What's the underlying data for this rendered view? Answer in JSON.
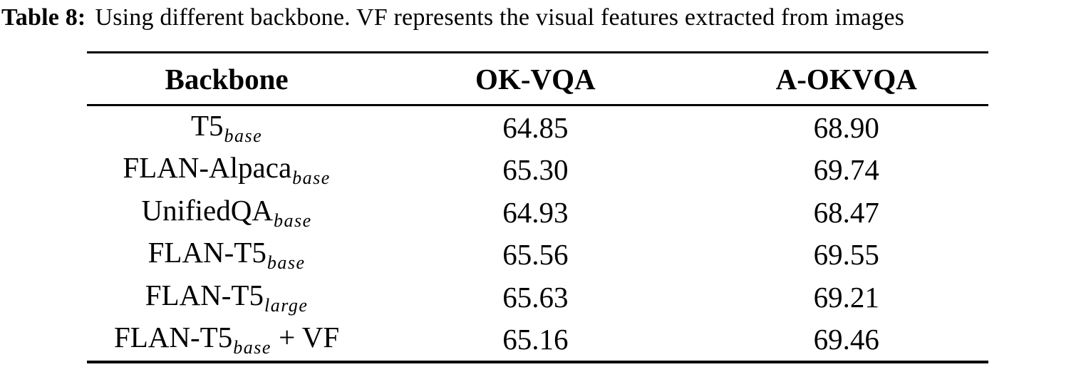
{
  "caption": {
    "label": "Table 8:",
    "text": "Using different backbone. VF represents the visual features extracted from images"
  },
  "table": {
    "headers": [
      "Backbone",
      "OK-VQA",
      "A-OKVQA"
    ],
    "rows": [
      {
        "backbone_main": "T5",
        "backbone_sub": "base",
        "backbone_suffix": "",
        "ok_vqa": "64.85",
        "a_okvqa": "68.90"
      },
      {
        "backbone_main": "FLAN-Alpaca",
        "backbone_sub": "base",
        "backbone_suffix": "",
        "ok_vqa": "65.30",
        "a_okvqa": "69.74"
      },
      {
        "backbone_main": "UnifiedQA",
        "backbone_sub": "base",
        "backbone_suffix": "",
        "ok_vqa": "64.93",
        "a_okvqa": "68.47"
      },
      {
        "backbone_main": "FLAN-T5",
        "backbone_sub": "base",
        "backbone_suffix": "",
        "ok_vqa": "65.56",
        "a_okvqa": "69.55"
      },
      {
        "backbone_main": "FLAN-T5",
        "backbone_sub": "large",
        "backbone_suffix": "",
        "ok_vqa": "65.63",
        "a_okvqa": "69.21"
      },
      {
        "backbone_main": "FLAN-T5",
        "backbone_sub": "base",
        "backbone_suffix": " + VF",
        "ok_vqa": "65.16",
        "a_okvqa": "69.46"
      }
    ]
  },
  "colors": {
    "text": "#000000",
    "background": "#ffffff",
    "rule": "#000000"
  }
}
